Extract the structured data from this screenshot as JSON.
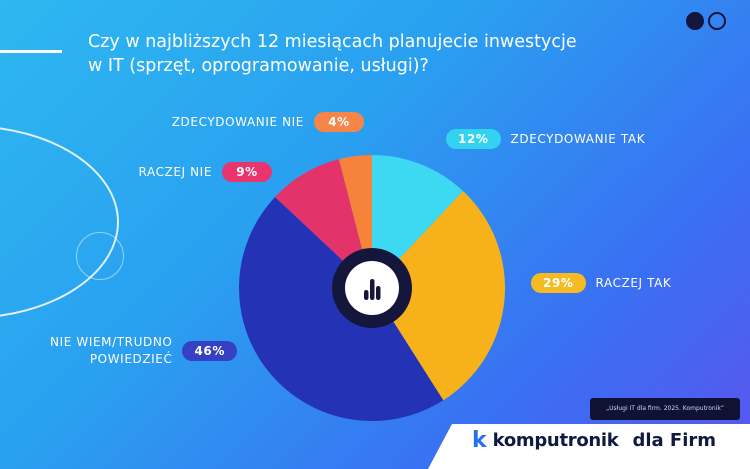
{
  "title": {
    "line1": "Czy w najbliższych 12 miesiącach planujecie inwestycje",
    "line2": "w IT (sprzęt, oprogramowanie, usługi)?"
  },
  "chart_data": {
    "type": "pie",
    "title": "Czy w najbliższych 12 miesiącach planujecie inwestycje w IT (sprzęt, oprogramowanie, usługi)?",
    "slices": [
      {
        "label": "ZDECYDOWANIE TAK",
        "value": 12,
        "display": "12%",
        "color": "#3dd8f2",
        "pill_color": "#33d3f0"
      },
      {
        "label": "RACZEJ TAK",
        "value": 29,
        "display": "29%",
        "color": "#f7b11a",
        "pill_color": "#f6bb22"
      },
      {
        "label": "NIE WIEM/TRUDNO POWIEDZIEĆ",
        "value": 46,
        "display": "46%",
        "color": "#2433b5",
        "pill_color": "#3640c4"
      },
      {
        "label": "RACZEJ NIE",
        "value": 9,
        "display": "9%",
        "color": "#e2336b",
        "pill_color": "#e8356e"
      },
      {
        "label": "ZDECYDOWANIE NIE",
        "value": 4,
        "display": "4%",
        "color": "#f7823a",
        "pill_color": "#f6854a"
      }
    ],
    "center_icon": "bar-chart-icon"
  },
  "labels": {
    "zdecydowanie_tak": "ZDECYDOWANIE TAK",
    "raczej_tak": "RACZEJ TAK",
    "nie_wiem_line1": "NIE WIEM/TRUDNO",
    "nie_wiem_line2": "POWIEDZIEĆ",
    "raczej_nie": "RACZEJ NIE",
    "zdecydowanie_nie": "ZDECYDOWANIE NIE"
  },
  "source": "„Usługi IT dla firm. 2025. Komputronik”",
  "brand": {
    "logo_letter": "k",
    "name": "komputronik",
    "suffix": "dla Firm"
  },
  "colors": {
    "dark": "#14163c",
    "accent": "#2a6ff0"
  }
}
